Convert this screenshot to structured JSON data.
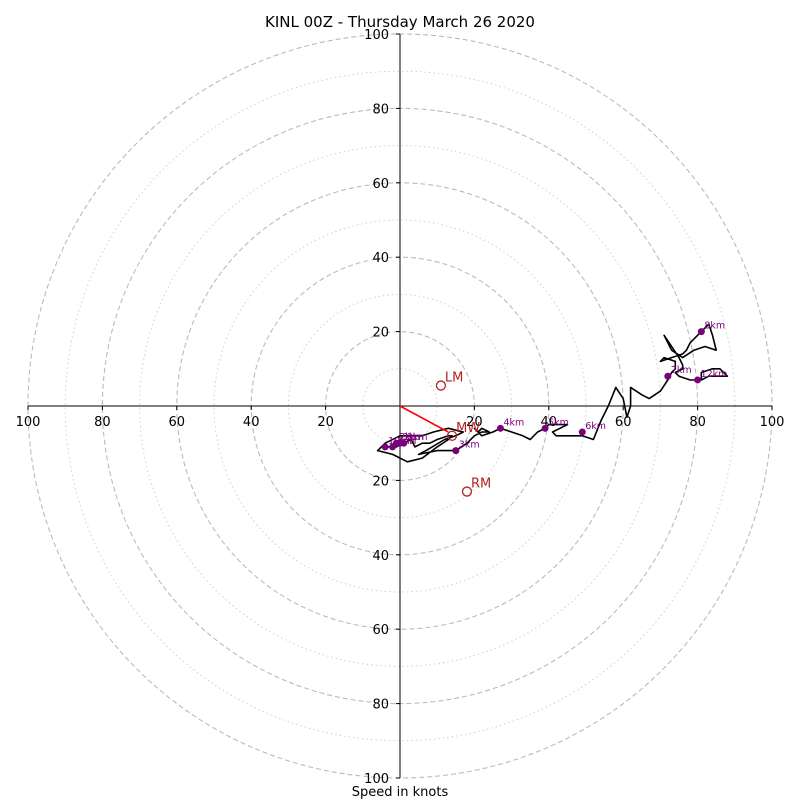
{
  "chart_data": {
    "type": "hodograph",
    "title": "KINL 00Z - Thursday March 26 2020",
    "xlabel": "Speed in knots",
    "axis_range": [
      -100,
      100
    ],
    "ring_major": [
      20,
      40,
      60,
      80,
      100
    ],
    "ring_minor": [
      10,
      30,
      50,
      70,
      90
    ],
    "tick_labels_x": [
      "100",
      "80",
      "60",
      "40",
      "20",
      "20",
      "40",
      "60",
      "80",
      "100"
    ],
    "tick_labels_y": [
      "100",
      "80",
      "60",
      "40",
      "20",
      "20",
      "40",
      "60",
      "80",
      "100"
    ],
    "grid": true,
    "colors": {
      "profile": "#000000",
      "height_marker": "#7b007b",
      "motion": "#b22222",
      "mean_wind_vector": "#ff0000",
      "grid": "#bbbbbb"
    },
    "profile": [
      [
        -4,
        -11
      ],
      [
        -1,
        -11
      ],
      [
        3,
        -9
      ],
      [
        4,
        -11
      ],
      [
        6,
        -10
      ],
      [
        8,
        -10
      ],
      [
        10,
        -9
      ],
      [
        13,
        -8
      ],
      [
        14,
        -8
      ],
      [
        13,
        -9
      ],
      [
        10,
        -11
      ],
      [
        6,
        -14
      ],
      [
        2,
        -15
      ],
      [
        -2,
        -13
      ],
      [
        -6,
        -12
      ],
      [
        -4,
        -10
      ],
      [
        0,
        -8
      ],
      [
        6,
        -8
      ],
      [
        9,
        -7
      ],
      [
        13,
        -6
      ],
      [
        17,
        -7
      ],
      [
        15,
        -8
      ],
      [
        12,
        -9
      ],
      [
        7,
        -12
      ],
      [
        5,
        -13
      ],
      [
        10,
        -12
      ],
      [
        15,
        -12
      ],
      [
        18,
        -10
      ],
      [
        20,
        -8
      ],
      [
        22,
        -7
      ],
      [
        24,
        -7
      ],
      [
        22,
        -6
      ],
      [
        21,
        -7
      ],
      [
        20,
        -6
      ],
      [
        22,
        -8
      ],
      [
        25,
        -7
      ],
      [
        27,
        -6
      ],
      [
        30,
        -7
      ],
      [
        33,
        -8
      ],
      [
        35,
        -9
      ],
      [
        37,
        -7
      ],
      [
        39,
        -6
      ],
      [
        40,
        -5
      ],
      [
        43,
        -5
      ],
      [
        45,
        -5
      ],
      [
        43,
        -6
      ],
      [
        41,
        -7
      ],
      [
        42,
        -8
      ],
      [
        46,
        -8
      ],
      [
        49,
        -8
      ],
      [
        52,
        -9
      ],
      [
        54,
        -4
      ],
      [
        56,
        0
      ],
      [
        58,
        5
      ],
      [
        60,
        2
      ],
      [
        61,
        -3
      ],
      [
        62,
        0
      ],
      [
        62,
        5
      ],
      [
        65,
        3
      ],
      [
        67,
        2
      ],
      [
        70,
        4
      ],
      [
        72,
        7
      ],
      [
        73,
        9
      ],
      [
        74,
        10
      ],
      [
        74,
        12
      ],
      [
        71,
        13
      ],
      [
        70,
        12
      ],
      [
        73,
        13
      ],
      [
        76,
        14
      ],
      [
        77,
        15
      ],
      [
        78,
        17
      ],
      [
        79,
        18
      ],
      [
        80,
        19
      ],
      [
        81,
        20
      ],
      [
        82,
        21
      ],
      [
        83,
        22
      ],
      [
        84,
        19
      ],
      [
        85,
        15
      ],
      [
        82,
        16
      ],
      [
        79,
        15
      ],
      [
        76,
        13
      ],
      [
        73,
        15
      ],
      [
        71,
        19
      ],
      [
        73,
        16
      ],
      [
        75,
        13
      ],
      [
        76,
        11
      ],
      [
        76,
        10
      ],
      [
        74,
        9
      ],
      [
        75,
        8
      ],
      [
        78,
        7
      ],
      [
        81,
        7
      ],
      [
        83,
        8
      ],
      [
        86,
        8
      ],
      [
        88,
        8
      ],
      [
        86,
        10
      ],
      [
        84,
        10
      ],
      [
        81,
        9
      ],
      [
        81,
        7
      ]
    ],
    "height_markers": [
      {
        "label": "10km",
        "u": -4,
        "v": -11
      },
      {
        "label": "3km",
        "u": -2,
        "v": -11
      },
      {
        "label": "2km",
        "u": -1,
        "v": -10
      },
      {
        "label": "1km",
        "u": 0,
        "v": -10
      },
      {
        "label": "9km",
        "u": 1,
        "v": -10
      },
      {
        "label": "3km",
        "u": 15,
        "v": -12
      },
      {
        "label": "4km",
        "u": 27,
        "v": -6
      },
      {
        "label": "5km",
        "u": 39,
        "v": -6
      },
      {
        "label": "6km",
        "u": 49,
        "v": -7
      },
      {
        "label": "7km",
        "u": 72,
        "v": 8
      },
      {
        "label": "8km",
        "u": 81,
        "v": 20
      },
      {
        "label": "12km",
        "u": 80,
        "v": 7
      }
    ],
    "motion_points": [
      {
        "label": "LM",
        "u": 11,
        "v": 5.5
      },
      {
        "label": "RM",
        "u": 18,
        "v": -23
      },
      {
        "label": "MW",
        "u": 14,
        "v": -8
      }
    ],
    "mean_wind_vector": {
      "from": [
        0,
        0
      ],
      "to": [
        13,
        -7
      ]
    }
  }
}
